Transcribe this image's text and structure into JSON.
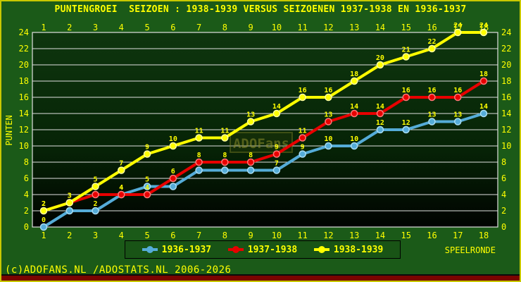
{
  "page": {
    "copyright": "(c)ADOFANS.NL /ADOSTATS.NL 2006-2026",
    "colors": {
      "background": "#1b5a18",
      "page_border": "#c8c800",
      "bottom_bar": "#7a0400",
      "grid": "#e0e0e0",
      "text": "#ffff00"
    }
  },
  "chart_data": {
    "type": "line",
    "title": "PUNTENGROEI  SEIZOEN : 1938-1939 VERSUS SEIZOENEN 1937-1938 EN 1936-1937",
    "xlabel": "SPEELRONDE",
    "ylabel": "PUNTEN",
    "x": [
      1,
      2,
      3,
      4,
      5,
      6,
      7,
      8,
      9,
      10,
      11,
      12,
      13,
      14,
      15,
      16,
      17,
      18
    ],
    "ylim": [
      0,
      24
    ],
    "ytick_step": 2,
    "grid": true,
    "legend_position": "bottom",
    "point_label_color": "#ffff00",
    "watermark": "ADOFans",
    "series": [
      {
        "name": "1936-1937",
        "color": "#55acd8",
        "edge": "#a8dcf4",
        "values": [
          0,
          2,
          2,
          4,
          5,
          5,
          7,
          7,
          7,
          7,
          9,
          10,
          10,
          12,
          12,
          13,
          13,
          14
        ]
      },
      {
        "name": "1937-1938",
        "color": "#e80000",
        "edge": "#ff7878",
        "values": [
          2,
          3,
          4,
          4,
          4,
          6,
          8,
          8,
          8,
          9,
          11,
          13,
          14,
          14,
          16,
          16,
          16,
          18
        ]
      },
      {
        "name": "1938-1939",
        "color": "#ffff00",
        "edge": "#ffffa0",
        "values": [
          2,
          3,
          5,
          7,
          9,
          10,
          11,
          11,
          13,
          14,
          16,
          16,
          18,
          20,
          21,
          22,
          24,
          24
        ]
      }
    ]
  }
}
